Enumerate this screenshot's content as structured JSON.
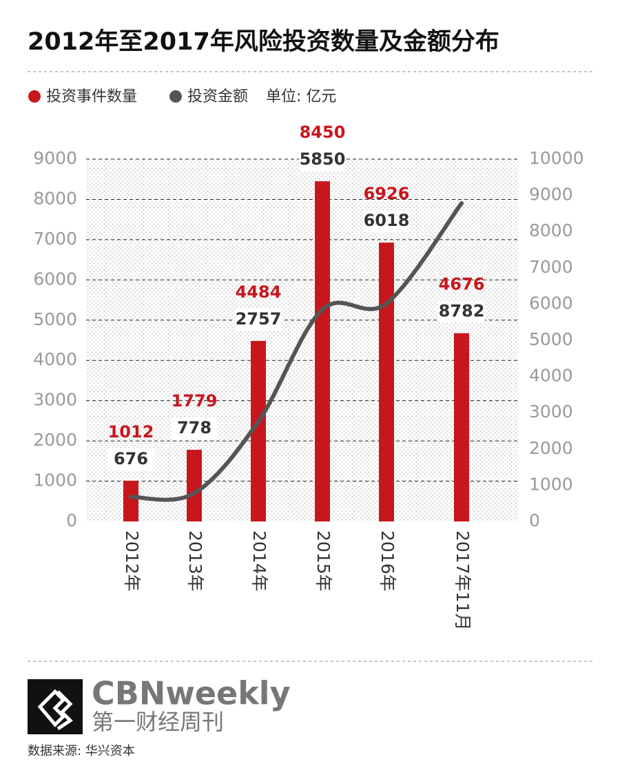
{
  "chart_data": {
    "type": "bar",
    "title": "2012年至2017年风险投资数量及金额分布",
    "categories": [
      "2012年",
      "2013年",
      "2014年",
      "2015年",
      "2016年",
      "2017年11月"
    ],
    "series": [
      {
        "name": "投资事件数量",
        "color": "#c8161d",
        "values": [
          1012,
          1779,
          4484,
          8450,
          6926,
          4676
        ]
      },
      {
        "name": "投资金额",
        "color": "#555555",
        "type": "line",
        "axis": "y2",
        "values": [
          676,
          778,
          2757,
          5850,
          6018,
          8782
        ]
      }
    ],
    "unit": "单位: 亿元",
    "ylim": [
      0,
      9000
    ],
    "yticks": [
      0,
      1000,
      2000,
      3000,
      4000,
      5000,
      6000,
      7000,
      8000,
      9000
    ],
    "y2lim": [
      0,
      10000
    ],
    "y2ticks": [
      0,
      1000,
      2000,
      3000,
      4000,
      5000,
      6000,
      7000,
      8000,
      9000,
      10000
    ],
    "grid": true
  },
  "footer": {
    "brand": "CBNweekly",
    "brand_sub": "第一财经周刊",
    "source": "数据来源: 华兴资本"
  }
}
